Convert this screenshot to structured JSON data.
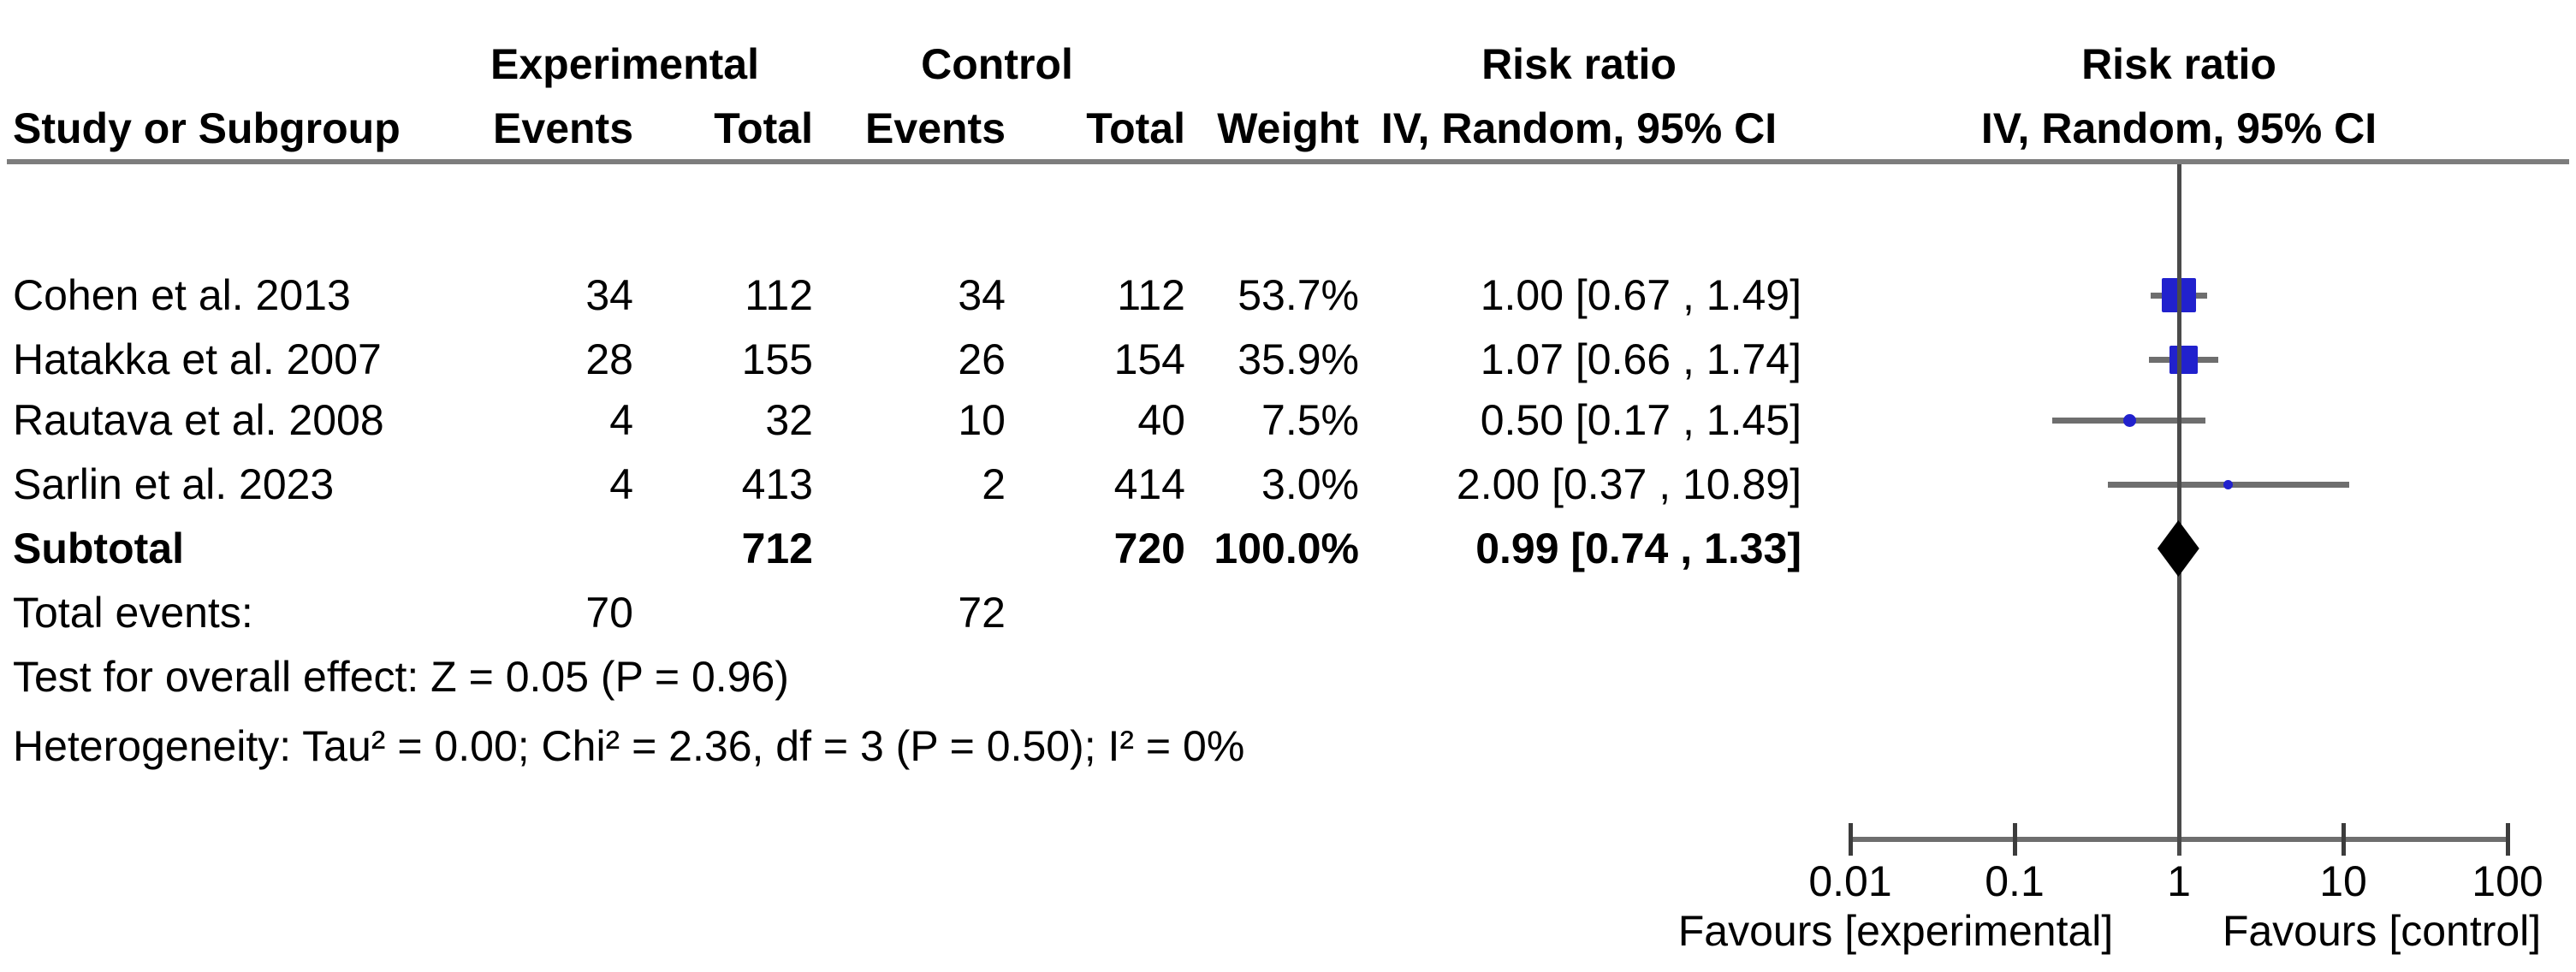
{
  "header": {
    "group_experimental": "Experimental",
    "group_control": "Control",
    "risk_ratio_text_col": "Risk ratio",
    "risk_ratio_plot_col": "Risk ratio",
    "col_study": "Study or Subgroup",
    "col_events_exp": "Events",
    "col_total_exp": "Total",
    "col_events_ctrl": "Events",
    "col_total_ctrl": "Total",
    "col_weight": "Weight",
    "col_ci_text": "IV, Random, 95% CI",
    "col_ci_plot": "IV, Random, 95% CI"
  },
  "table": {
    "rows": [
      {
        "study": "Cohen et al. 2013",
        "events_exp": "34",
        "total_exp": "112",
        "events_ctrl": "34",
        "total_ctrl": "112",
        "weight": "53.7%",
        "ci": "1.00 [0.67 , 1.49]"
      },
      {
        "study": "Hatakka et al. 2007",
        "events_exp": "28",
        "total_exp": "155",
        "events_ctrl": "26",
        "total_ctrl": "154",
        "weight": "35.9%",
        "ci": "1.07 [0.66 , 1.74]"
      },
      {
        "study": "Rautava et al. 2008",
        "events_exp": "4",
        "total_exp": "32",
        "events_ctrl": "10",
        "total_ctrl": "40",
        "weight": "7.5%",
        "ci": "0.50 [0.17 , 1.45]"
      },
      {
        "study": "Sarlin et al. 2023",
        "events_exp": "4",
        "total_exp": "413",
        "events_ctrl": "2",
        "total_ctrl": "414",
        "weight": "3.0%",
        "ci": "2.00 [0.37 , 10.89]"
      }
    ],
    "subtotal": {
      "label": "Subtotal",
      "total_exp": "712",
      "total_ctrl": "720",
      "weight": "100.0%",
      "ci": "0.99 [0.74 , 1.33]"
    },
    "total_events": {
      "label": "Total events:",
      "exp": "70",
      "ctrl": "72"
    },
    "overall_effect_line": "Test for overall effect: Z = 0.05 (P = 0.96)",
    "heterogeneity_line": "Heterogeneity: Tau² = 0.00; Chi² = 2.36, df = 3 (P = 0.50); I² = 0%"
  },
  "chart_data": {
    "type": "forest",
    "effect_measure": "Risk ratio",
    "model": "IV, Random, 95% CI",
    "x_scale": "log10",
    "axis_ticks": [
      0.01,
      0.1,
      1,
      10,
      100
    ],
    "tick_labels": [
      "0.01",
      "0.1",
      "1",
      "10",
      "100"
    ],
    "null_line_value": 1,
    "favours_left": "Favours [experimental]",
    "favours_right": "Favours [control]",
    "studies": [
      {
        "name": "Cohen et al. 2013",
        "rr": 1.0,
        "ci_low": 0.67,
        "ci_high": 1.49,
        "weight_pct": 53.7
      },
      {
        "name": "Hatakka et al. 2007",
        "rr": 1.07,
        "ci_low": 0.66,
        "ci_high": 1.74,
        "weight_pct": 35.9
      },
      {
        "name": "Rautava et al. 2008",
        "rr": 0.5,
        "ci_low": 0.17,
        "ci_high": 1.45,
        "weight_pct": 7.5
      },
      {
        "name": "Sarlin et al. 2023",
        "rr": 2.0,
        "ci_low": 0.37,
        "ci_high": 10.89,
        "weight_pct": 3.0
      }
    ],
    "summary": {
      "name": "Subtotal",
      "rr": 0.99,
      "ci_low": 0.74,
      "ci_high": 1.33,
      "weight_pct": 100.0
    },
    "colors": {
      "marker_blue": "#2121cd",
      "summary_black": "#000000",
      "ci_line_gray": "#6e6e6e",
      "null_line_gray": "#4a4a4a"
    }
  }
}
